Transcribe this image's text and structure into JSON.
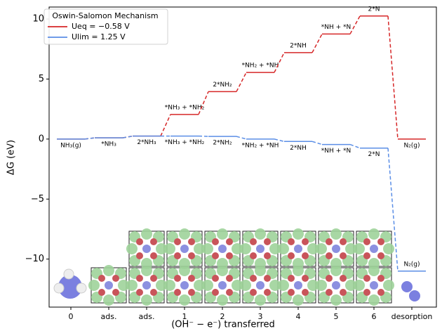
{
  "chart_data": {
    "type": "energy-diagram",
    "xlabel": "(OH⁻ − e⁻) transferred",
    "ylabel": "ΔG (eV)",
    "categories": [
      "0",
      "ads.",
      "ads.",
      "1",
      "2",
      "3",
      "4",
      "5",
      "6",
      "desorption"
    ],
    "ylim": [
      -14,
      11
    ],
    "yticks": [
      {
        "value": -10,
        "label": "−10"
      },
      {
        "value": -5,
        "label": "−5"
      },
      0,
      5,
      10
    ],
    "legend_title": "Oswin-Salomon Mechanism",
    "legend": "upper left",
    "series": [
      {
        "name": "Ueq = −0.58 V",
        "color": "#d62728",
        "values": [
          0,
          0.1,
          0.25,
          2.05,
          3.95,
          5.55,
          7.2,
          8.75,
          10.25,
          0
        ],
        "labels": [
          null,
          null,
          null,
          "*NH₃ + *NH₂",
          "2*NH₂",
          "*NH₂ + *NH",
          "2*NH",
          "*NH + *N",
          "2*N",
          "N₂(g)"
        ]
      },
      {
        "name": "Ulim = 1.25 V",
        "color": "#5b8ee6",
        "values": [
          0,
          0.1,
          0.25,
          0.25,
          0.22,
          0.0,
          -0.2,
          -0.45,
          -0.75,
          -11.0
        ],
        "labels": [
          "NH₃(g)",
          "*NH₃",
          "2*NH₃",
          "*NH₃ + *NH₂",
          "2*NH₂",
          "*NH₂ + *NH",
          "2*NH",
          "*NH + *N",
          "2*N",
          "N₂(g)"
        ]
      }
    ]
  }
}
